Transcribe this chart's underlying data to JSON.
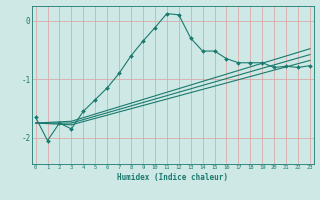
{
  "xlabel": "Humidex (Indice chaleur)",
  "bg_color": "#cde8e5",
  "line_color": "#1a7a6e",
  "grid_color": "#dea0a0",
  "x_ticks": [
    0,
    1,
    2,
    3,
    4,
    5,
    6,
    7,
    8,
    9,
    10,
    11,
    12,
    13,
    14,
    15,
    16,
    17,
    18,
    19,
    20,
    21,
    22,
    23
  ],
  "ylim": [
    -2.45,
    0.25
  ],
  "xlim": [
    -0.3,
    23.3
  ],
  "series1_x": [
    0,
    1,
    2,
    3,
    4,
    5,
    6,
    7,
    8,
    9,
    10,
    11,
    12,
    13,
    14,
    15,
    16,
    17,
    18,
    19,
    20,
    21,
    22,
    23
  ],
  "series1_y": [
    -1.65,
    -2.05,
    -1.75,
    -1.85,
    -1.55,
    -1.35,
    -1.15,
    -0.9,
    -0.6,
    -0.35,
    -0.12,
    0.12,
    0.1,
    -0.3,
    -0.52,
    -0.52,
    -0.65,
    -0.72,
    -0.72,
    -0.72,
    -0.8,
    -0.78,
    -0.8,
    -0.77
  ],
  "series2_x": [
    0,
    3,
    23
  ],
  "series2_y": [
    -1.75,
    -1.78,
    -0.68
  ],
  "series3_x": [
    0,
    3,
    23
  ],
  "series3_y": [
    -1.75,
    -1.75,
    -0.58
  ],
  "series4_x": [
    0,
    3,
    23
  ],
  "series4_y": [
    -1.75,
    -1.72,
    -0.48
  ]
}
